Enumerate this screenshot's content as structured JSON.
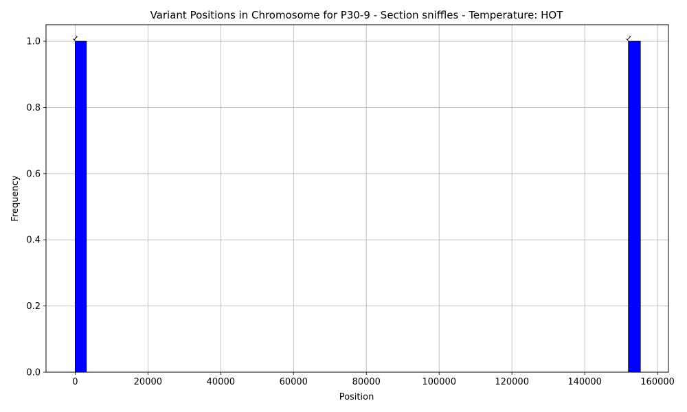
{
  "chart_data": {
    "type": "bar",
    "title": "Variant Positions in Chromosome for P30-9 - Section sniffles - Temperature: HOT",
    "xlabel": "Position",
    "ylabel": "Frequency",
    "xlim": [
      -8000,
      163000
    ],
    "ylim": [
      0,
      1.05
    ],
    "xticks": [
      0,
      20000,
      40000,
      60000,
      80000,
      100000,
      120000,
      140000,
      160000
    ],
    "yticks": [
      0.0,
      0.2,
      0.4,
      0.6,
      0.8,
      1.0
    ],
    "grid": true,
    "bar_color": "#0000ff",
    "bar_edge_color": "#000000",
    "bars": [
      {
        "x_start": 0,
        "x_end": 3100,
        "value": 1,
        "label": "1"
      },
      {
        "x_start": 152000,
        "x_end": 155300,
        "value": 1,
        "label": "1"
      }
    ]
  }
}
